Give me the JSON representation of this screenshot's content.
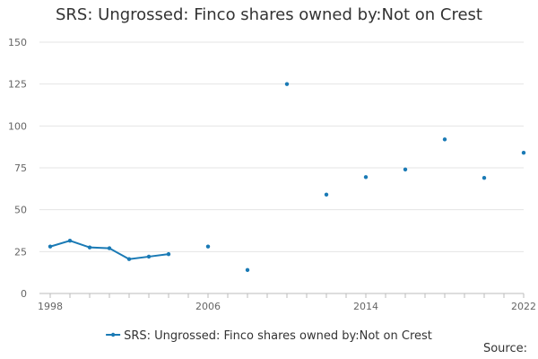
{
  "chart_data": {
    "type": "line",
    "title": "SRS: Ungrossed: Finco shares owned by:Not on Crest",
    "xlabel": "",
    "ylabel": "",
    "ylim": [
      0,
      150
    ],
    "xlim": [
      1998,
      2022
    ],
    "y_ticks": [
      0,
      25,
      50,
      75,
      100,
      125,
      150
    ],
    "x_ticks": [
      1998,
      2006,
      2014,
      2022
    ],
    "grid": true,
    "legend_position": "bottom",
    "series": [
      {
        "name": "SRS: Ungrossed: Finco shares owned by:Not on Crest",
        "color": "#1a7ab5",
        "x": [
          1998,
          1999,
          2000,
          2001,
          2002,
          2003,
          2004,
          2006,
          2008,
          2010,
          2012,
          2014,
          2016,
          2018,
          2020,
          2022
        ],
        "values": [
          28,
          31.5,
          27.5,
          27,
          20.5,
          22,
          23.5,
          28,
          14,
          125,
          59,
          69.5,
          74,
          92,
          69,
          84
        ]
      }
    ]
  },
  "footer": {
    "source_label": "Source:"
  }
}
